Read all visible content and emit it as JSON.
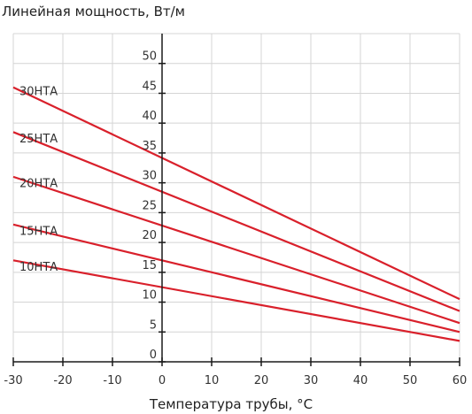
{
  "chart_data": {
    "type": "line",
    "ylabel": "Линейная мощность, Вт/м",
    "xlabel": "Температура трубы, °С",
    "xlim": [
      -30,
      60
    ],
    "ylim": [
      0,
      55
    ],
    "x_ticks": [
      -30,
      -20,
      -10,
      0,
      10,
      20,
      30,
      40,
      50,
      60
    ],
    "y_ticks": [
      0,
      5,
      10,
      15,
      20,
      25,
      30,
      35,
      40,
      45,
      50
    ],
    "grid": true,
    "line_color": "#d9202b",
    "series": [
      {
        "name": "30НТА",
        "x": [
          -30,
          60
        ],
        "y": [
          46,
          10.5
        ]
      },
      {
        "name": "25НТА",
        "x": [
          -30,
          60
        ],
        "y": [
          38.5,
          8.5
        ]
      },
      {
        "name": "20НТА",
        "x": [
          -30,
          60
        ],
        "y": [
          31,
          6.5
        ]
      },
      {
        "name": "15НТА",
        "x": [
          -30,
          60
        ],
        "y": [
          23,
          5
        ]
      },
      {
        "name": "10НТА",
        "x": [
          -30,
          60
        ],
        "y": [
          17,
          3.5
        ]
      }
    ]
  }
}
